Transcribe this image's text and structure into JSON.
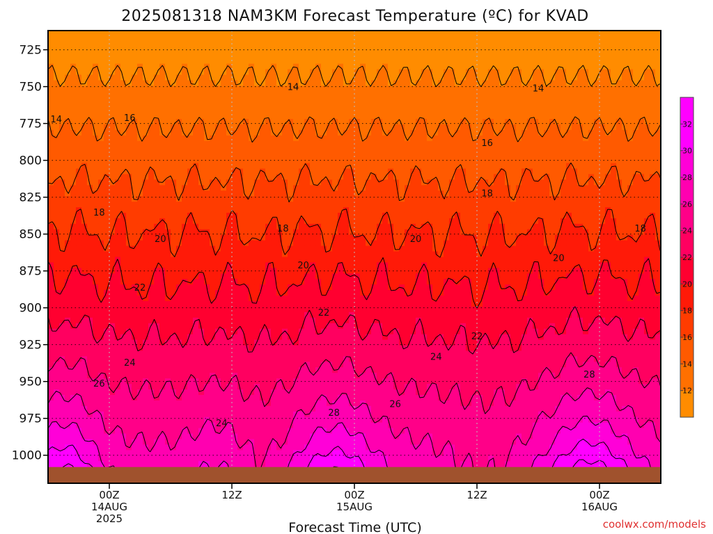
{
  "chart_data": {
    "type": "heatmap",
    "title": "2025081318 NAM3KM Forecast Temperature (ºC) for KVAD",
    "xlabel": "Forecast Time (UTC)",
    "ylabel": "",
    "y_axis": {
      "ticks": [
        725,
        750,
        775,
        800,
        825,
        850,
        875,
        900,
        925,
        950,
        975,
        1000
      ],
      "range": [
        712,
        1019
      ],
      "inverted": true
    },
    "x_axis": {
      "range_hours": [
        -6,
        54
      ],
      "ticks": [
        {
          "hour": 0,
          "lines": [
            "00Z",
            "14AUG",
            "2025"
          ]
        },
        {
          "hour": 12,
          "lines": [
            "12Z"
          ]
        },
        {
          "hour": 24,
          "lines": [
            "00Z",
            "15AUG"
          ]
        },
        {
          "hour": 36,
          "lines": [
            "12Z"
          ]
        },
        {
          "hour": 48,
          "lines": [
            "00Z",
            "16AUG"
          ]
        }
      ]
    },
    "grid": true,
    "levels": [
      12,
      14,
      16,
      18,
      20,
      22,
      24,
      26,
      28,
      30,
      32
    ],
    "colorbar": {
      "tick_labels": [
        "12",
        "14",
        "16",
        "18",
        "20",
        "22",
        "24",
        "26",
        "28",
        "30",
        "32"
      ],
      "colors": [
        "#ff8c00",
        "#ff7000",
        "#ff5a00",
        "#ff3c00",
        "#ff1a08",
        "#ff0030",
        "#ff0060",
        "#ff0088",
        "#ff00b0",
        "#ff00d8",
        "#ff00ff",
        "#ff00ff"
      ]
    },
    "surface_pressure": 1008,
    "surface_color": "#a0522d",
    "contour_labels": [
      {
        "text": "14",
        "hour": -5.2,
        "p": 772
      },
      {
        "text": "14",
        "hour": 18,
        "p": 750
      },
      {
        "text": "14",
        "hour": 42,
        "p": 751
      },
      {
        "text": "16",
        "hour": 2,
        "p": 771
      },
      {
        "text": "16",
        "hour": 37,
        "p": 788
      },
      {
        "text": "18",
        "hour": -1,
        "p": 835
      },
      {
        "text": "18",
        "hour": 17,
        "p": 846
      },
      {
        "text": "18",
        "hour": 37,
        "p": 822
      },
      {
        "text": "18",
        "hour": 52,
        "p": 846
      },
      {
        "text": "20",
        "hour": 5,
        "p": 853
      },
      {
        "text": "20",
        "hour": 19,
        "p": 871
      },
      {
        "text": "20",
        "hour": 30,
        "p": 853
      },
      {
        "text": "20",
        "hour": 44,
        "p": 866
      },
      {
        "text": "22",
        "hour": 3,
        "p": 886
      },
      {
        "text": "22",
        "hour": 21,
        "p": 903
      },
      {
        "text": "22",
        "hour": 36,
        "p": 919
      },
      {
        "text": "24",
        "hour": 2,
        "p": 937
      },
      {
        "text": "24",
        "hour": 11,
        "p": 978
      },
      {
        "text": "24",
        "hour": 32,
        "p": 933
      },
      {
        "text": "26",
        "hour": -1,
        "p": 951
      },
      {
        "text": "26",
        "hour": 28,
        "p": 965
      },
      {
        "text": "28",
        "hour": 22,
        "p": 971
      },
      {
        "text": "28",
        "hour": 47,
        "p": 945
      }
    ]
  },
  "credit": "coolwx.com/models"
}
